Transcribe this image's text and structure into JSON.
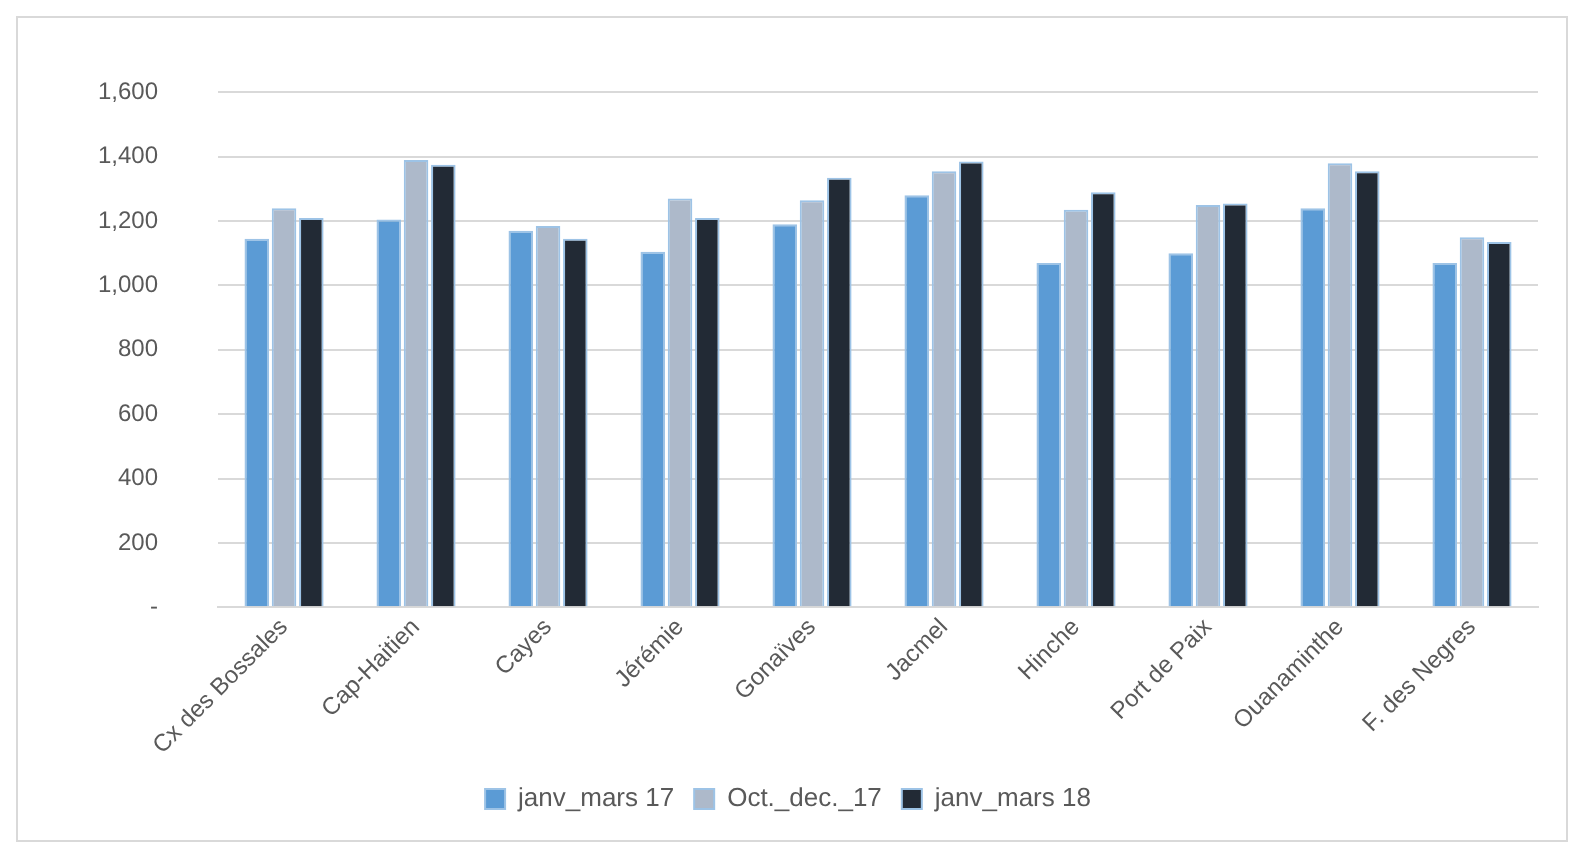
{
  "chart_data": {
    "type": "bar",
    "categories": [
      "Cx des Bossales",
      "Cap-Haitien",
      "Cayes",
      "Jérémie",
      "Gonaïves",
      "Jacmel",
      "Hinche",
      "Port de Paix",
      "Ouanaminthe",
      "F. des Negres"
    ],
    "series": [
      {
        "name": "janv_mars 17",
        "color": "#5b9bd5",
        "values": [
          1145,
          1205,
          1170,
          1105,
          1190,
          1280,
          1070,
          1100,
          1240,
          1070
        ]
      },
      {
        "name": "Oct._dec._17",
        "color": "#adb9ca",
        "values": [
          1240,
          1390,
          1185,
          1270,
          1265,
          1355,
          1235,
          1250,
          1380,
          1150
        ]
      },
      {
        "name": "janv_mars 18",
        "color": "#222a35",
        "values": [
          1210,
          1375,
          1145,
          1210,
          1335,
          1385,
          1290,
          1255,
          1355,
          1135
        ]
      }
    ],
    "ylim": [
      0,
      1600
    ],
    "yticks": [
      {
        "value": 0,
        "label": "-"
      },
      200,
      400,
      600,
      800,
      {
        "value": 1000,
        "label": "1,000"
      },
      {
        "value": 1200,
        "label": "1,200"
      },
      {
        "value": 1400,
        "label": "1,400"
      },
      {
        "value": 1600,
        "label": "1,600"
      }
    ],
    "grid": "y",
    "legend": "bottom"
  }
}
